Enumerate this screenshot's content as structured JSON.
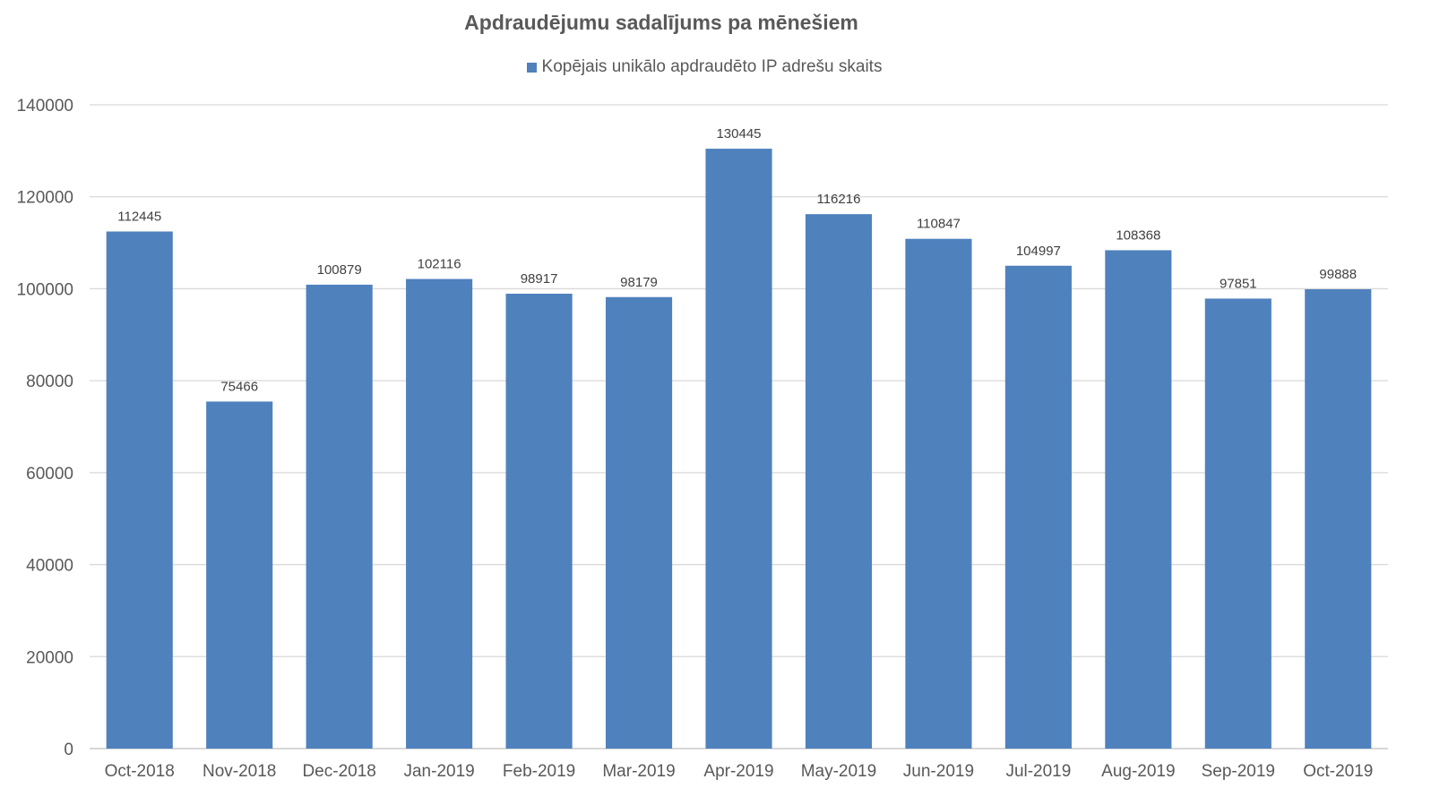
{
  "chart_data": {
    "type": "bar",
    "title": "Apdraudējumu sadalījums pa mēnešiem",
    "legend": "top",
    "grid": true,
    "ylim": [
      0,
      140000
    ],
    "yticks": [
      "0",
      "20000",
      "40000",
      "60000",
      "80000",
      "100000",
      "120000",
      "140000"
    ],
    "categories": [
      "Oct-2018",
      "Nov-2018",
      "Dec-2018",
      "Jan-2019",
      "Feb-2019",
      "Mar-2019",
      "Apr-2019",
      "May-2019",
      "Jun-2019",
      "Jul-2019",
      "Aug-2019",
      "Sep-2019",
      "Oct-2019"
    ],
    "series": [
      {
        "name": "Kopējais unikālo apdraudēto IP adrešu skaits",
        "color": "#4F81BD",
        "values": [
          112445,
          75466,
          100879,
          102116,
          98917,
          98179,
          130445,
          116216,
          110847,
          104997,
          108368,
          97851,
          99888
        ]
      }
    ]
  }
}
